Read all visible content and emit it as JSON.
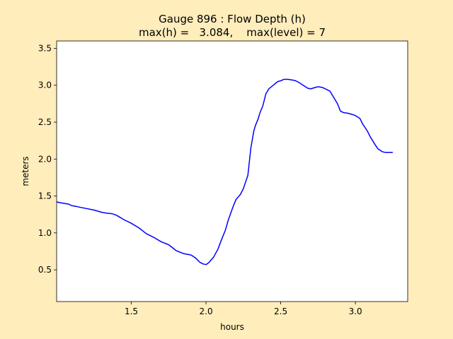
{
  "chart_data": {
    "type": "line",
    "title_line1": "Gauge 896 : Flow Depth (h)",
    "title_line2": "max(h) =   3.084,    max(level) = 7",
    "xlabel": "hours",
    "ylabel": "meters",
    "xlim": [
      1.0,
      3.35
    ],
    "ylim": [
      0.07,
      3.6
    ],
    "xticks": [
      1.5,
      2.0,
      2.5,
      3.0
    ],
    "xtick_labels": [
      "1.5",
      "2.0",
      "2.5",
      "3.0"
    ],
    "yticks": [
      0.5,
      1.0,
      1.5,
      2.0,
      2.5,
      3.0,
      3.5
    ],
    "ytick_labels": [
      "0.5",
      "1.0",
      "1.5",
      "2.0",
      "2.5",
      "3.0",
      "3.5"
    ],
    "grid": false,
    "colors": {
      "line": "#0000ff",
      "axes_bg": "#ffffff",
      "figure_bg": "#ffedbc"
    },
    "series": [
      {
        "x": [
          1.0,
          1.02,
          1.05,
          1.08,
          1.1,
          1.13,
          1.15,
          1.2,
          1.25,
          1.3,
          1.33,
          1.37,
          1.4,
          1.45,
          1.5,
          1.55,
          1.6,
          1.65,
          1.7,
          1.75,
          1.8,
          1.85,
          1.9,
          1.93,
          1.96,
          1.98,
          2.0,
          2.02,
          2.05,
          2.08,
          2.1,
          2.13,
          2.15,
          2.18,
          2.2,
          2.23,
          2.25,
          2.28,
          2.3,
          2.32,
          2.33,
          2.35,
          2.36,
          2.38,
          2.4,
          2.42,
          2.45,
          2.48,
          2.5,
          2.52,
          2.55,
          2.58,
          2.6,
          2.62,
          2.65,
          2.68,
          2.7,
          2.73,
          2.75,
          2.78,
          2.8,
          2.83,
          2.85,
          2.88,
          2.9,
          2.92,
          2.95,
          2.97,
          3.0,
          3.03,
          3.05,
          3.08,
          3.1,
          3.13,
          3.15,
          3.18,
          3.2,
          3.23,
          3.25
        ],
        "y": [
          1.42,
          1.41,
          1.4,
          1.39,
          1.37,
          1.36,
          1.35,
          1.33,
          1.31,
          1.28,
          1.27,
          1.26,
          1.24,
          1.18,
          1.13,
          1.07,
          0.99,
          0.94,
          0.88,
          0.84,
          0.76,
          0.72,
          0.7,
          0.66,
          0.6,
          0.58,
          0.57,
          0.6,
          0.67,
          0.78,
          0.89,
          1.04,
          1.18,
          1.35,
          1.45,
          1.52,
          1.6,
          1.78,
          2.15,
          2.38,
          2.45,
          2.55,
          2.62,
          2.72,
          2.88,
          2.95,
          3.0,
          3.05,
          3.06,
          3.08,
          3.08,
          3.07,
          3.06,
          3.04,
          3.0,
          2.96,
          2.95,
          2.97,
          2.98,
          2.97,
          2.95,
          2.92,
          2.85,
          2.75,
          2.65,
          2.63,
          2.62,
          2.61,
          2.59,
          2.55,
          2.47,
          2.38,
          2.3,
          2.2,
          2.14,
          2.1,
          2.09,
          2.09,
          2.09
        ]
      }
    ]
  }
}
